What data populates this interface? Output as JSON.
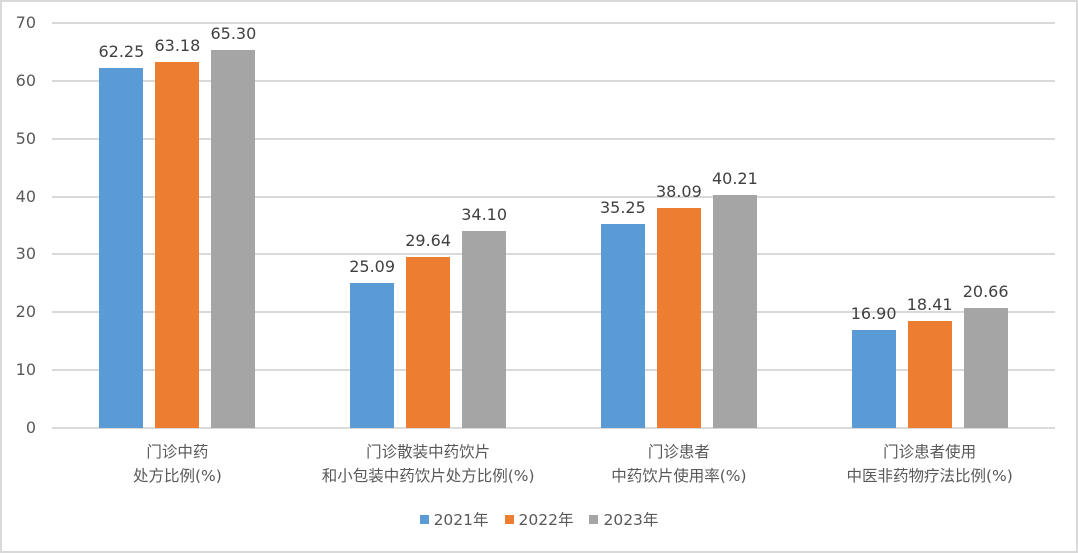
{
  "chart_data": {
    "type": "bar",
    "title": "",
    "xlabel": "",
    "ylabel": "",
    "ylim": [
      0,
      70
    ],
    "yticks": [
      0,
      10,
      20,
      30,
      40,
      50,
      60,
      70
    ],
    "grid": true,
    "legend_position": "bottom",
    "categories": [
      [
        "门诊中药",
        "处方比例(%)"
      ],
      [
        "门诊散装中药饮片",
        "和小包装中药饮片处方比例(%)"
      ],
      [
        "门诊患者",
        "中药饮片使用率(%)"
      ],
      [
        "门诊患者使用",
        "中医非药物疗法比例(%)"
      ]
    ],
    "series": [
      {
        "name": "2021年",
        "color": "#5b9bd5",
        "values": [
          62.25,
          25.09,
          35.25,
          16.9
        ],
        "labels": [
          "62.25",
          "25.09",
          "35.25",
          "16.90"
        ]
      },
      {
        "name": "2022年",
        "color": "#ed7d31",
        "values": [
          63.18,
          29.64,
          38.09,
          18.41
        ],
        "labels": [
          "63.18",
          "29.64",
          "38.09",
          "18.41"
        ]
      },
      {
        "name": "2023年",
        "color": "#a5a5a5",
        "values": [
          65.3,
          34.1,
          40.21,
          20.66
        ],
        "labels": [
          "65.30",
          "34.10",
          "40.21",
          "20.66"
        ]
      }
    ]
  }
}
